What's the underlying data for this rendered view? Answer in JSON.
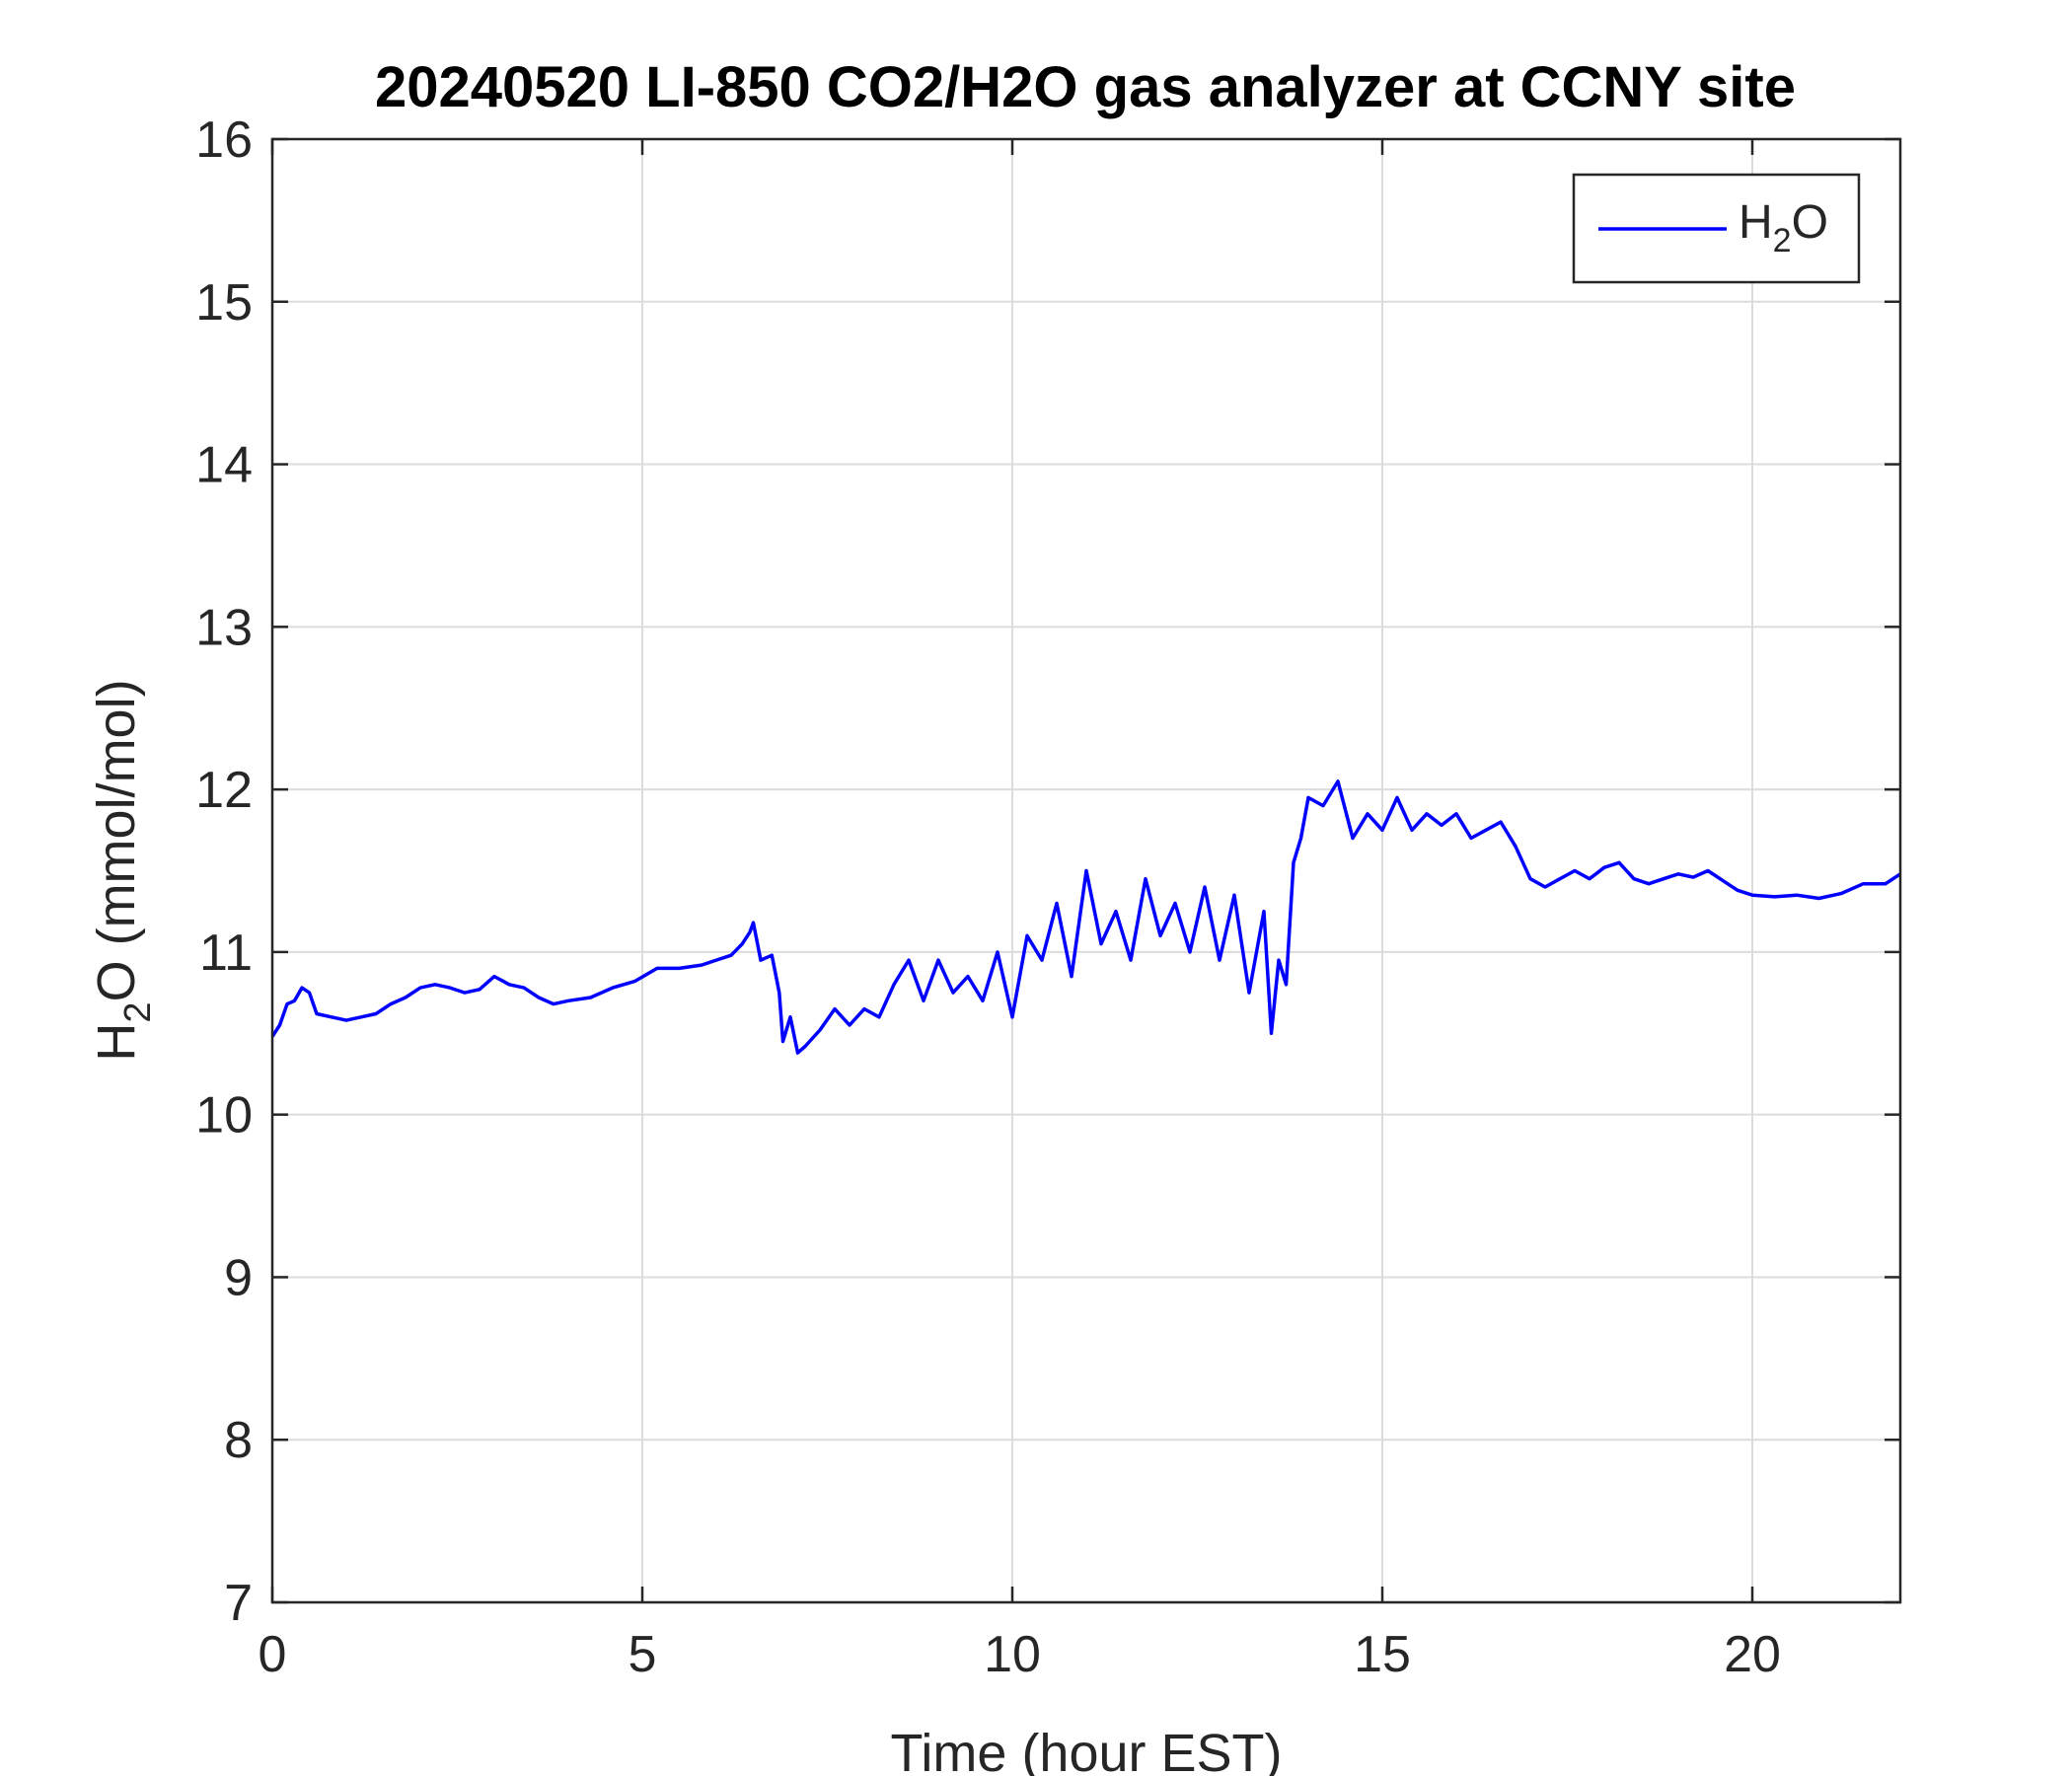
{
  "chart_data": {
    "type": "line",
    "title": "20240520 LI-850 CO2/H2O gas analyzer at CCNY site",
    "xlabel": "Time (hour EST)",
    "ylabel": {
      "prefix": "H",
      "subscript": "2",
      "suffix": "O (mmol/mol)"
    },
    "xlim": [
      0,
      22
    ],
    "ylim": [
      7,
      16
    ],
    "xticks": [
      0,
      5,
      10,
      15,
      20
    ],
    "yticks": [
      7,
      8,
      9,
      10,
      11,
      12,
      13,
      14,
      15,
      16
    ],
    "grid": true,
    "legend_position": "top-right",
    "series": [
      {
        "legend": {
          "prefix": "H",
          "subscript": "2",
          "suffix": "O"
        },
        "color": "#0000ff",
        "x": [
          0,
          0.1,
          0.2,
          0.3,
          0.4,
          0.5,
          0.6,
          0.8,
          1.0,
          1.2,
          1.4,
          1.6,
          1.8,
          2.0,
          2.2,
          2.4,
          2.6,
          2.8,
          3.0,
          3.2,
          3.4,
          3.6,
          3.8,
          4.0,
          4.3,
          4.6,
          4.9,
          5.2,
          5.5,
          5.8,
          6.0,
          6.2,
          6.35,
          6.45,
          6.5,
          6.6,
          6.75,
          6.85,
          6.9,
          7.0,
          7.1,
          7.2,
          7.4,
          7.6,
          7.8,
          8.0,
          8.2,
          8.4,
          8.6,
          8.8,
          9.0,
          9.2,
          9.4,
          9.6,
          9.8,
          10.0,
          10.2,
          10.4,
          10.6,
          10.8,
          11.0,
          11.2,
          11.4,
          11.6,
          11.8,
          12.0,
          12.2,
          12.4,
          12.6,
          12.8,
          13.0,
          13.2,
          13.4,
          13.5,
          13.6,
          13.7,
          13.8,
          13.9,
          14.0,
          14.2,
          14.4,
          14.6,
          14.8,
          15.0,
          15.2,
          15.4,
          15.6,
          15.8,
          16.0,
          16.2,
          16.4,
          16.6,
          16.8,
          17.0,
          17.2,
          17.4,
          17.6,
          17.8,
          18.0,
          18.2,
          18.4,
          18.6,
          18.8,
          19.0,
          19.2,
          19.4,
          19.6,
          19.8,
          20.0,
          20.3,
          20.6,
          20.9,
          21.2,
          21.5,
          21.8,
          22.0
        ],
        "values": [
          10.48,
          10.55,
          10.68,
          10.7,
          10.78,
          10.75,
          10.62,
          10.6,
          10.58,
          10.6,
          10.62,
          10.68,
          10.72,
          10.78,
          10.8,
          10.78,
          10.75,
          10.77,
          10.85,
          10.8,
          10.78,
          10.72,
          10.68,
          10.7,
          10.72,
          10.78,
          10.82,
          10.9,
          10.9,
          10.92,
          10.95,
          10.98,
          11.05,
          11.12,
          11.18,
          10.95,
          10.98,
          10.75,
          10.45,
          10.6,
          10.38,
          10.42,
          10.52,
          10.65,
          10.55,
          10.65,
          10.6,
          10.8,
          10.95,
          10.7,
          10.95,
          10.75,
          10.85,
          10.7,
          11.0,
          10.6,
          11.1,
          10.95,
          11.3,
          10.85,
          11.5,
          11.05,
          11.25,
          10.95,
          11.45,
          11.1,
          11.3,
          11.0,
          11.4,
          10.95,
          11.35,
          10.75,
          11.25,
          10.5,
          10.95,
          10.8,
          11.55,
          11.7,
          11.95,
          11.9,
          12.05,
          11.7,
          11.85,
          11.75,
          11.95,
          11.75,
          11.85,
          11.78,
          11.85,
          11.7,
          11.75,
          11.8,
          11.65,
          11.45,
          11.4,
          11.45,
          11.5,
          11.45,
          11.52,
          11.55,
          11.45,
          11.42,
          11.45,
          11.48,
          11.46,
          11.5,
          11.44,
          11.38,
          11.35,
          11.34,
          11.35,
          11.33,
          11.36,
          11.42,
          11.42,
          11.48
        ]
      }
    ]
  }
}
